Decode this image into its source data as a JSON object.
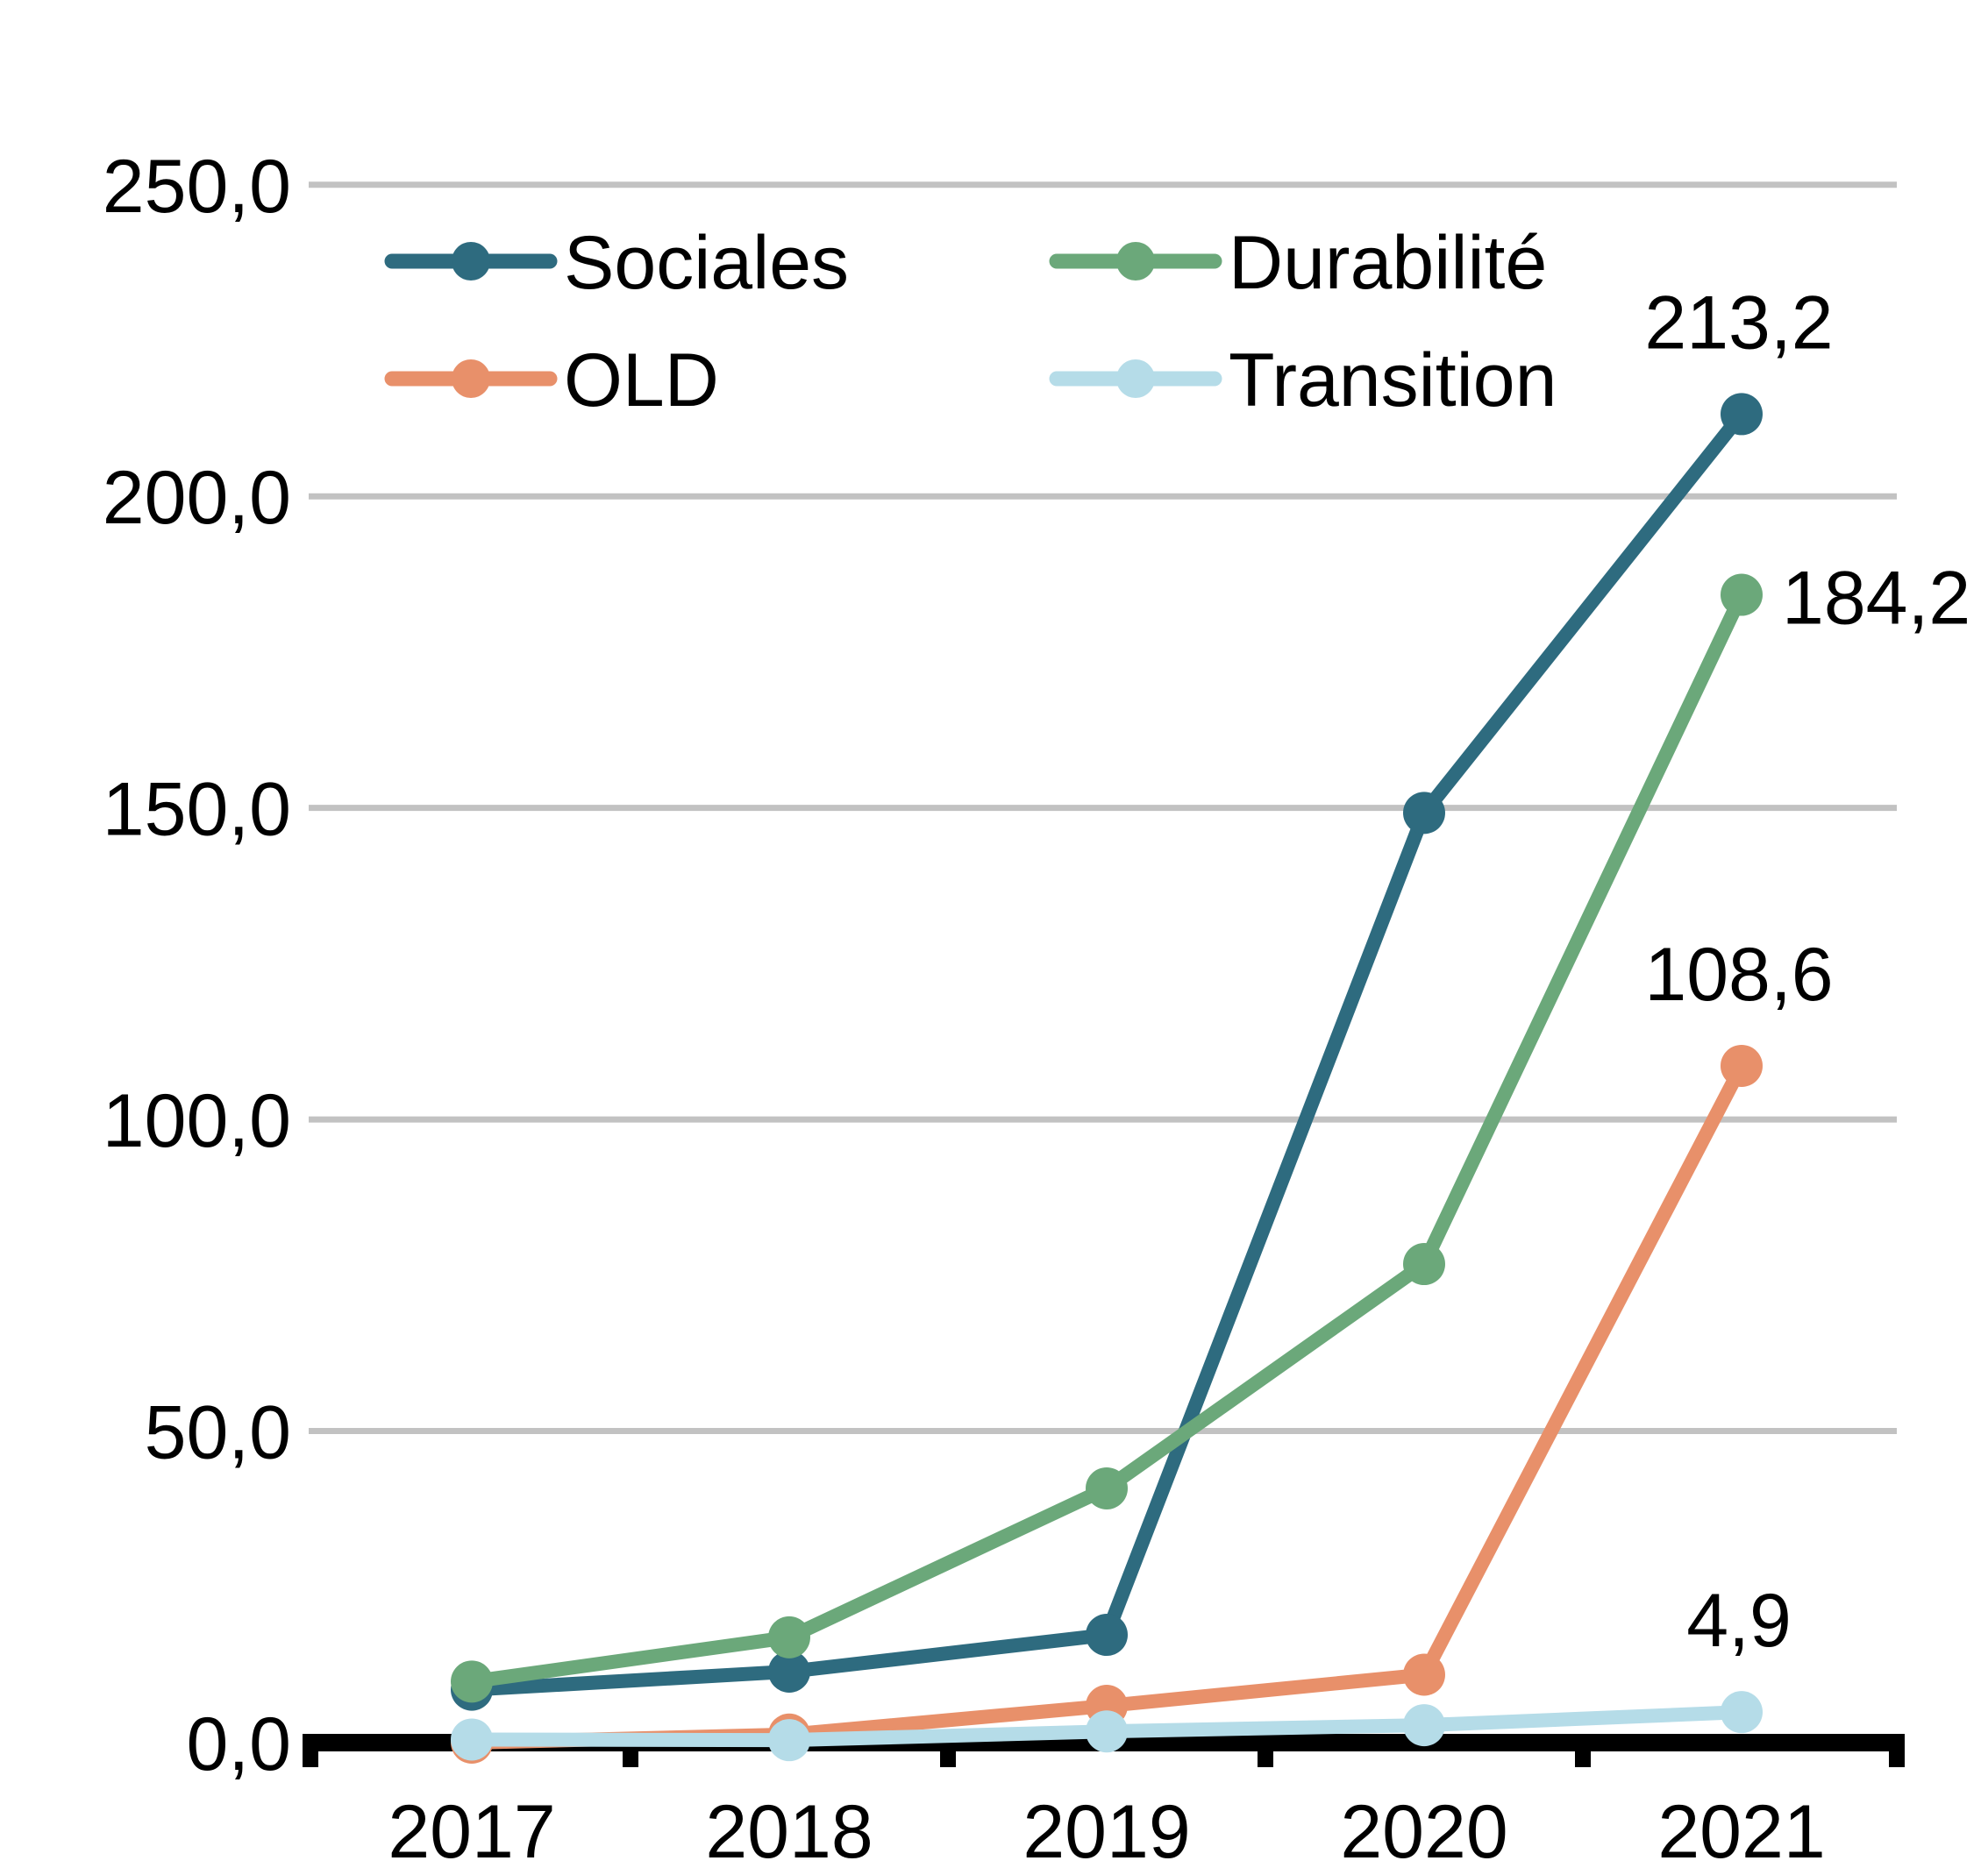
{
  "chart_data": {
    "type": "line",
    "title": "",
    "xlabel": "",
    "ylabel": "",
    "categories": [
      "2017",
      "2018",
      "2019",
      "2020",
      "2021"
    ],
    "series": [
      {
        "name": "Sociales",
        "color": "#2e6b7f",
        "values": [
          8.5,
          11.4,
          17.3,
          149.2,
          213.2
        ],
        "end_label": "213,2",
        "end_label_pos": "above"
      },
      {
        "name": "Durabilité",
        "color": "#6ba87a",
        "values": [
          9.8,
          16.9,
          40.8,
          76.8,
          184.2
        ],
        "end_label": "184,2",
        "end_label_pos": "right"
      },
      {
        "name": "OLD",
        "color": "#e8906a",
        "values": [
          0.0,
          1.3,
          5.9,
          10.9,
          108.6
        ],
        "end_label": "108,6",
        "end_label_pos": "above"
      },
      {
        "name": "Transition",
        "color": "#b5dce8",
        "values": [
          0.5,
          0.4,
          1.8,
          2.8,
          4.9
        ],
        "end_label": "4,9",
        "end_label_pos": "above"
      }
    ],
    "ylim": [
      0,
      250
    ],
    "ytick_step": 50,
    "ytick_labels": [
      "0,0",
      "50,0",
      "100,0",
      "150,0",
      "200,0",
      "250,0"
    ],
    "decimal_separator": ",",
    "grid": true,
    "legend_position": "top-inside",
    "legend_rows": [
      [
        "Sociales",
        "Durabilité"
      ],
      [
        "OLD",
        "Transition"
      ]
    ]
  },
  "colors": {
    "background": "#ffffff",
    "gridline": "#c2c2c2",
    "axis": "#000000",
    "text": "#000000"
  }
}
